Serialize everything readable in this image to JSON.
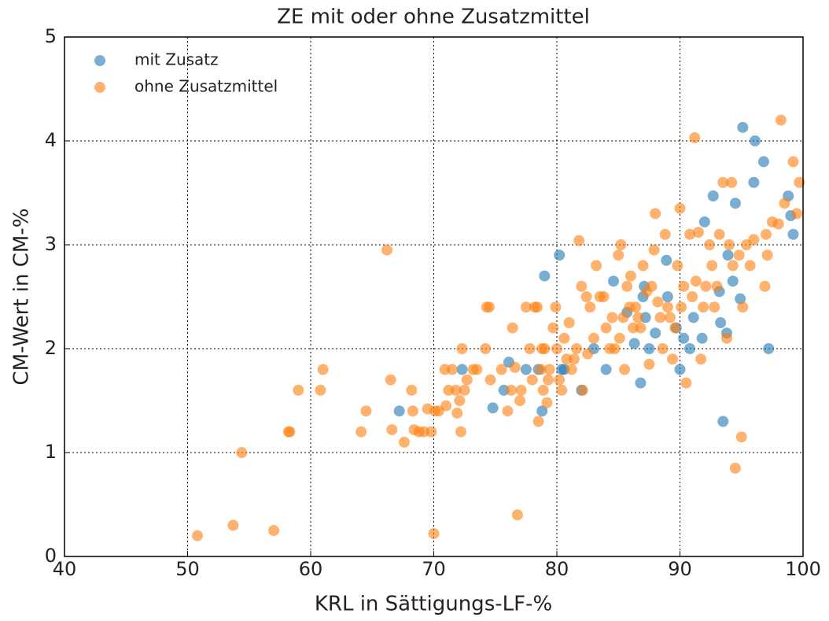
{
  "chart_data": {
    "type": "scatter",
    "title": "ZE mit oder ohne Zusatzmittel",
    "x_label": "KRL in Sättigungs-LF-%",
    "y_label": "CM-Wert in CM-%",
    "xlim": [
      40,
      100
    ],
    "xticks": [
      40,
      50,
      60,
      70,
      80,
      90,
      100
    ],
    "ylim": [
      0,
      5
    ],
    "yticks": [
      0,
      1,
      2,
      3,
      4,
      5
    ],
    "grid": true,
    "legend": "upper left",
    "series": [
      {
        "name": "mit Zusatz",
        "color": "#1f77b4",
        "x": [
          67.2,
          72.3,
          74.8,
          75.7,
          76.1,
          77.5,
          78.5,
          78.8,
          79,
          80.2,
          80.4,
          80.6,
          82,
          83,
          84,
          84.6,
          86.3,
          86.8,
          87,
          87.1,
          87.2,
          87.5,
          88,
          88.9,
          89,
          89.7,
          90,
          90.3,
          90.8,
          91.1,
          91.8,
          92,
          92.7,
          93.2,
          93.3,
          93.5,
          93.8,
          93.9,
          94.3,
          94.5,
          94.9,
          95.1,
          96,
          96.1,
          96.8,
          97.2,
          98.8,
          99,
          99.2,
          85.7
        ],
        "values": [
          1.4,
          1.8,
          1.43,
          1.6,
          1.87,
          1.8,
          1.8,
          1.4,
          2.7,
          2.9,
          1.8,
          1.8,
          1.6,
          2.0,
          1.8,
          2.65,
          2.05,
          1.67,
          2.5,
          2.6,
          2.3,
          2.0,
          2.15,
          2.85,
          2.5,
          2.2,
          1.8,
          2.1,
          2.0,
          2.3,
          2.1,
          3.22,
          3.47,
          2.55,
          2.25,
          1.3,
          2.15,
          2.9,
          2.65,
          3.4,
          2.48,
          4.13,
          3.6,
          4.0,
          3.8,
          2.0,
          3.47,
          3.28,
          3.1,
          2.35
        ]
      },
      {
        "name": "ohne Zusatzmittel",
        "color": "#ff7f0e",
        "x": [
          50.8,
          53.7,
          54.4,
          57,
          58.2,
          58.3,
          59,
          60.8,
          61,
          64.1,
          64.5,
          66.2,
          66.5,
          66.6,
          67.6,
          68.2,
          68.3,
          68.4,
          68.8,
          69.2,
          69.5,
          69.8,
          70,
          70.1,
          70.4,
          70.9,
          71,
          71.2,
          71.5,
          71.8,
          71.9,
          72.1,
          72.2,
          72.3,
          72.5,
          72.7,
          73.2,
          73.5,
          74.2,
          74.3,
          74.5,
          74.6,
          75.5,
          76,
          76.3,
          76.4,
          76.6,
          76.8,
          77,
          77.1,
          77.5,
          77.8,
          78,
          78.2,
          78.4,
          78.5,
          78.7,
          78.8,
          78.9,
          79,
          79.2,
          79.3,
          79.4,
          79.7,
          79.9,
          80,
          80.2,
          80.4,
          80.6,
          80.8,
          81,
          81.2,
          81.4,
          81.6,
          81.8,
          82,
          82.1,
          82.4,
          82.5,
          82.7,
          83,
          83.2,
          83.5,
          83.8,
          84,
          84.3,
          84.5,
          84.7,
          85,
          85.1,
          85.2,
          85.4,
          85.5,
          85.7,
          85.9,
          86,
          86.2,
          86.4,
          86.6,
          86.8,
          87,
          87.3,
          87.5,
          87.7,
          87.9,
          88,
          88.2,
          88.4,
          88.6,
          88.8,
          89,
          89.2,
          89.4,
          89.6,
          89.8,
          90,
          90.1,
          90.3,
          90.5,
          90.8,
          91,
          91.2,
          91.3,
          91.5,
          91.7,
          91.9,
          92.1,
          92.4,
          92.6,
          92.8,
          93,
          93.2,
          93.5,
          93.8,
          94,
          94.2,
          94.3,
          94.5,
          94.8,
          95,
          95.1,
          95.4,
          95.7,
          96,
          96.9,
          97,
          97.1,
          97.5,
          98,
          98.2,
          98.5,
          99.2,
          99.5,
          99.7
        ],
        "values": [
          0.2,
          0.3,
          1.0,
          0.25,
          1.2,
          1.2,
          1.6,
          1.6,
          1.8,
          1.2,
          1.4,
          2.95,
          1.7,
          1.22,
          1.1,
          1.6,
          1.4,
          1.22,
          1.2,
          1.2,
          1.42,
          1.2,
          0.22,
          1.4,
          1.4,
          1.8,
          1.45,
          1.6,
          1.8,
          1.6,
          1.38,
          1.5,
          1.2,
          2.0,
          1.6,
          1.7,
          1.8,
          1.8,
          2.0,
          2.4,
          2.4,
          1.7,
          1.8,
          1.4,
          1.6,
          2.2,
          1.82,
          0.4,
          1.5,
          1.6,
          2.4,
          2.0,
          1.7,
          2.4,
          2.4,
          1.3,
          1.8,
          2.0,
          1.6,
          2.0,
          1.48,
          1.7,
          1.8,
          2.2,
          2.4,
          2.0,
          1.7,
          1.6,
          2.1,
          1.9,
          2.25,
          1.8,
          1.9,
          2.0,
          3.04,
          2.6,
          1.6,
          2.5,
          1.95,
          2.4,
          2.1,
          2.8,
          2.5,
          2.5,
          2.2,
          2.0,
          2.3,
          2.0,
          2.9,
          2.1,
          3.0,
          2.3,
          1.8,
          2.6,
          2.4,
          2.7,
          2.2,
          2.4,
          2.3,
          2.2,
          2.8,
          2.55,
          1.85,
          2.6,
          2.95,
          3.3,
          2.45,
          2.3,
          2.0,
          3.1,
          2.4,
          2.3,
          1.9,
          2.2,
          2.8,
          3.35,
          2.4,
          2.6,
          1.67,
          3.1,
          2.5,
          4.03,
          2.65,
          3.12,
          1.9,
          2.4,
          2.6,
          3.0,
          2.8,
          2.4,
          2.6,
          3.1,
          3.6,
          2.1,
          3.0,
          3.6,
          2.8,
          0.85,
          2.9,
          1.15,
          2.4,
          3.0,
          2.8,
          3.05,
          2.6,
          3.1,
          2.9,
          3.22,
          3.2,
          4.2,
          3.4,
          3.8,
          3.3,
          3.6
        ]
      }
    ]
  }
}
